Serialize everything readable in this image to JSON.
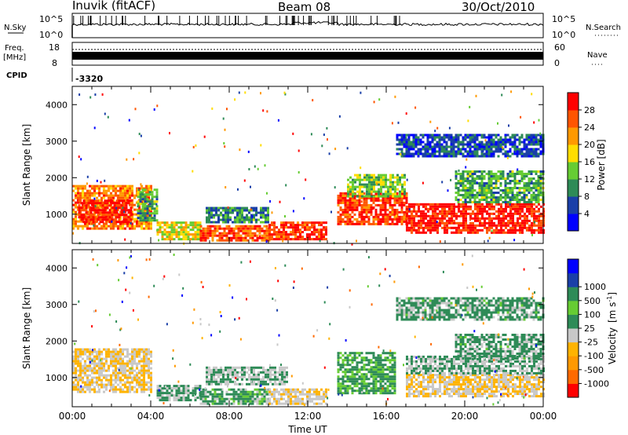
{
  "header": {
    "station": "Inuvik (fitACF)",
    "beam": "Beam 08",
    "date": "30/Oct/2010"
  },
  "top_panels": {
    "nsky_label": "N.Sky",
    "nsky_ticks": [
      "10^5",
      "10^0"
    ],
    "nsearch_label": "N.Search",
    "nsearch_ticks": [
      "10^5",
      "10^0"
    ],
    "freq_label": "Freq.",
    "freq_unit": "[MHz]",
    "freq_ticks": [
      "18",
      "8"
    ],
    "nave_label": "Nave",
    "nave_ticks": [
      "60",
      "0"
    ],
    "cpid_label": "CPID",
    "cpid_value": "-3320"
  },
  "colors": {
    "power_scale": [
      "#0000ff",
      "#1a3fa8",
      "#2e8b57",
      "#66cc33",
      "#ffdd00",
      "#ff9900",
      "#ff5500",
      "#ff0000"
    ],
    "velocity_scale": [
      "#ff0000",
      "#ff6a00",
      "#ff9900",
      "#ffb300",
      "#c8c8c8",
      "#2e8b57",
      "#66cc33",
      "#2e8b57",
      "#1a3fa8",
      "#0000ff"
    ]
  },
  "chart_data": [
    {
      "type": "heatmap",
      "panel": "power",
      "xlabel": "",
      "ylabel": "Slant Range [km]",
      "yticks": [
        "1000",
        "2000",
        "3000",
        "4000"
      ],
      "ylim": [
        200,
        4500
      ],
      "colorbar_label": "Power [dB]",
      "colorbar_ticks": [
        "4",
        "8",
        "12",
        "16",
        "20",
        "24",
        "28"
      ],
      "colorbar_range": [
        0,
        32
      ],
      "blobs": [
        {
          "t0": 0.0,
          "t1": 4.0,
          "r0": 600,
          "r1": 1800,
          "value": 24
        },
        {
          "t0": 0.3,
          "t1": 3.0,
          "r0": 800,
          "r1": 1400,
          "value": 30
        },
        {
          "t0": 3.3,
          "t1": 4.3,
          "r0": 800,
          "r1": 1700,
          "value": 12
        },
        {
          "t0": 4.3,
          "t1": 6.5,
          "r0": 300,
          "r1": 800,
          "value": 18
        },
        {
          "t0": 6.5,
          "t1": 10.0,
          "r0": 300,
          "r1": 700,
          "value": 26
        },
        {
          "t0": 6.8,
          "t1": 10.0,
          "r0": 800,
          "r1": 1200,
          "value": 10
        },
        {
          "t0": 10.0,
          "t1": 13.0,
          "r0": 300,
          "r1": 800,
          "value": 28
        },
        {
          "t0": 13.5,
          "t1": 17.0,
          "r0": 700,
          "r1": 1600,
          "value": 28
        },
        {
          "t0": 14.0,
          "t1": 17.0,
          "r0": 1500,
          "r1": 2100,
          "value": 14
        },
        {
          "t0": 17.0,
          "t1": 24.0,
          "r0": 500,
          "r1": 1300,
          "value": 30
        },
        {
          "t0": 19.5,
          "t1": 24.0,
          "r0": 1300,
          "r1": 2200,
          "value": 12
        },
        {
          "t0": 16.5,
          "t1": 24.0,
          "r0": 2600,
          "r1": 3200,
          "value": 6
        }
      ]
    },
    {
      "type": "heatmap",
      "panel": "velocity",
      "xlabel": "Time UT",
      "xticks": [
        "00:00",
        "04:00",
        "08:00",
        "12:00",
        "16:00",
        "20:00",
        "00:00"
      ],
      "xlim": [
        0,
        24
      ],
      "ylabel": "Slant Range [km]",
      "yticks": [
        "1000",
        "2000",
        "3000",
        "4000"
      ],
      "ylim": [
        200,
        4500
      ],
      "colorbar_label": "Velocity",
      "colorbar_unit": "[m s",
      "colorbar_exp": "-1",
      "colorbar_unit_end": "]",
      "colorbar_ticks": [
        "1000",
        "500",
        "100",
        "25",
        "-25",
        "-100",
        "-500",
        "-1000"
      ],
      "colorbar_range": [
        -1000,
        1000
      ],
      "blobs": [
        {
          "t0": 0.0,
          "t1": 4.0,
          "r0": 600,
          "r1": 1800,
          "value": -200
        },
        {
          "t0": 4.3,
          "t1": 6.5,
          "r0": 400,
          "r1": 800,
          "value": 50
        },
        {
          "t0": 6.5,
          "t1": 10.0,
          "r0": 300,
          "r1": 700,
          "value": 100
        },
        {
          "t0": 6.8,
          "t1": 11.0,
          "r0": 800,
          "r1": 1300,
          "value": 0
        },
        {
          "t0": 10.0,
          "t1": 13.0,
          "r0": 300,
          "r1": 700,
          "value": -150
        },
        {
          "t0": 13.5,
          "t1": 16.5,
          "r0": 600,
          "r1": 1700,
          "value": 150
        },
        {
          "t0": 17.0,
          "t1": 24.0,
          "r0": 500,
          "r1": 1100,
          "value": -200
        },
        {
          "t0": 17.0,
          "t1": 24.0,
          "r0": 1100,
          "r1": 1600,
          "value": 0
        },
        {
          "t0": 19.5,
          "t1": 24.0,
          "r0": 1500,
          "r1": 2200,
          "value": 60
        },
        {
          "t0": 16.5,
          "t1": 24.0,
          "r0": 2600,
          "r1": 3200,
          "value": 60
        }
      ]
    }
  ]
}
